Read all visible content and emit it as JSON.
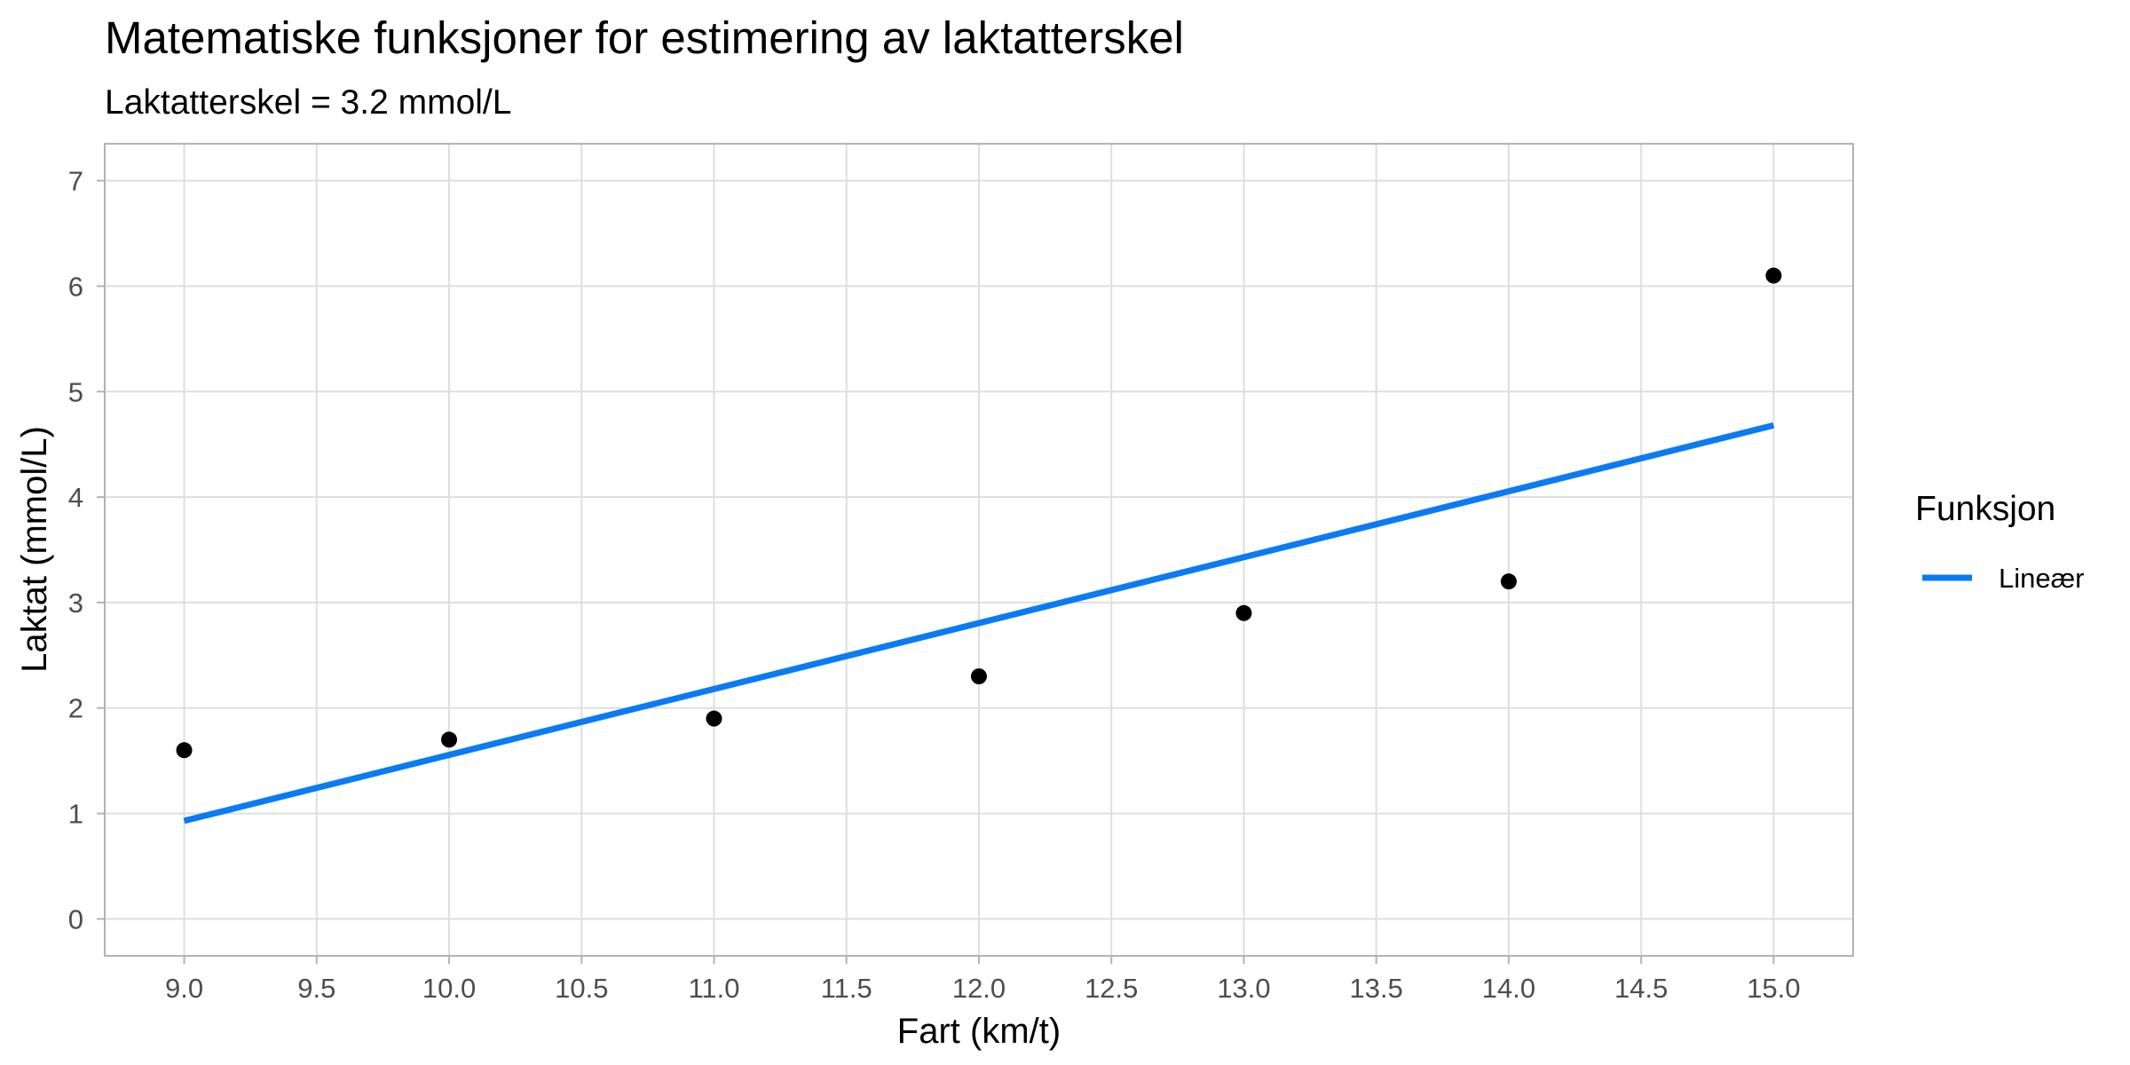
{
  "chart_data": {
    "type": "scatter",
    "title": "Matematiske funksjoner for estimering av laktatterskel",
    "subtitle": "Laktatterskel = 3.2 mmol/L",
    "xlabel": "Fart (km/t)",
    "ylabel": "Laktat (mmol/L)",
    "xlim": [
      8.7,
      15.3
    ],
    "ylim": [
      -0.35,
      7.35
    ],
    "x_ticks": [
      "9.0",
      "9.5",
      "10.0",
      "10.5",
      "11.0",
      "11.5",
      "12.0",
      "12.5",
      "13.0",
      "13.5",
      "14.0",
      "14.5",
      "15.0"
    ],
    "y_ticks": [
      "0",
      "1",
      "2",
      "3",
      "4",
      "5",
      "6",
      "7"
    ],
    "grid": true,
    "points": {
      "x": [
        9,
        10,
        11,
        12,
        13,
        14,
        15
      ],
      "y": [
        1.6,
        1.7,
        1.9,
        2.3,
        2.9,
        3.2,
        6.1
      ],
      "color": "#000000"
    },
    "series": [
      {
        "name": "Lineær",
        "type": "line",
        "x": [
          9,
          15
        ],
        "y": [
          0.93,
          4.68
        ],
        "color": "#0A7BF5"
      }
    ],
    "legend": {
      "title": "Funksjon",
      "placement": "right"
    }
  }
}
